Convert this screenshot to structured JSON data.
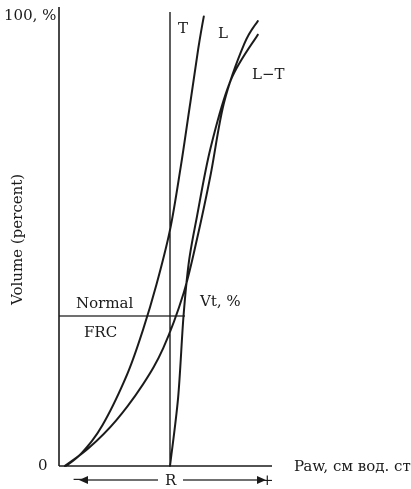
{
  "chart_data": {
    "type": "line",
    "ylabel": "Volume (percent)",
    "xlabel": "Paw, см вод. ст.",
    "y_ticks": [
      "100, %",
      "0"
    ],
    "x_ticks": [
      "−",
      "R",
      "+"
    ],
    "ylim": [
      0,
      100
    ],
    "xlim": [
      -8,
      8
    ],
    "grid": false,
    "annotations": {
      "normal_line1": "Normal",
      "normal_line2": "FRC",
      "vt": "Vt, %"
    },
    "reference": {
      "frc_volume": 33,
      "relaxation_pressure": 0
    },
    "series": [
      {
        "name": "T",
        "x": [
          -7.7,
          -6.5,
          -5.0,
          -3.2,
          -2.0,
          -1.0,
          0.0,
          0.8,
          1.5,
          2.1,
          2.5
        ],
        "y": [
          0,
          3,
          9,
          20,
          30,
          40,
          52,
          66,
          80,
          92,
          99
        ]
      },
      {
        "name": "L",
        "x": [
          -7.8,
          -6.0,
          -4.0,
          -2.0,
          -0.5,
          1.0,
          2.0,
          3.0,
          4.0,
          5.5,
          6.5
        ],
        "y": [
          0,
          4,
          10,
          18,
          26,
          38,
          50,
          64,
          80,
          93,
          98
        ]
      },
      {
        "name": "L−T",
        "x": [
          0.0,
          0.6,
          1.0,
          1.4,
          2.0,
          3.0,
          4.5,
          6.5
        ],
        "y": [
          0,
          15,
          33,
          45,
          55,
          70,
          85,
          95
        ]
      }
    ]
  }
}
